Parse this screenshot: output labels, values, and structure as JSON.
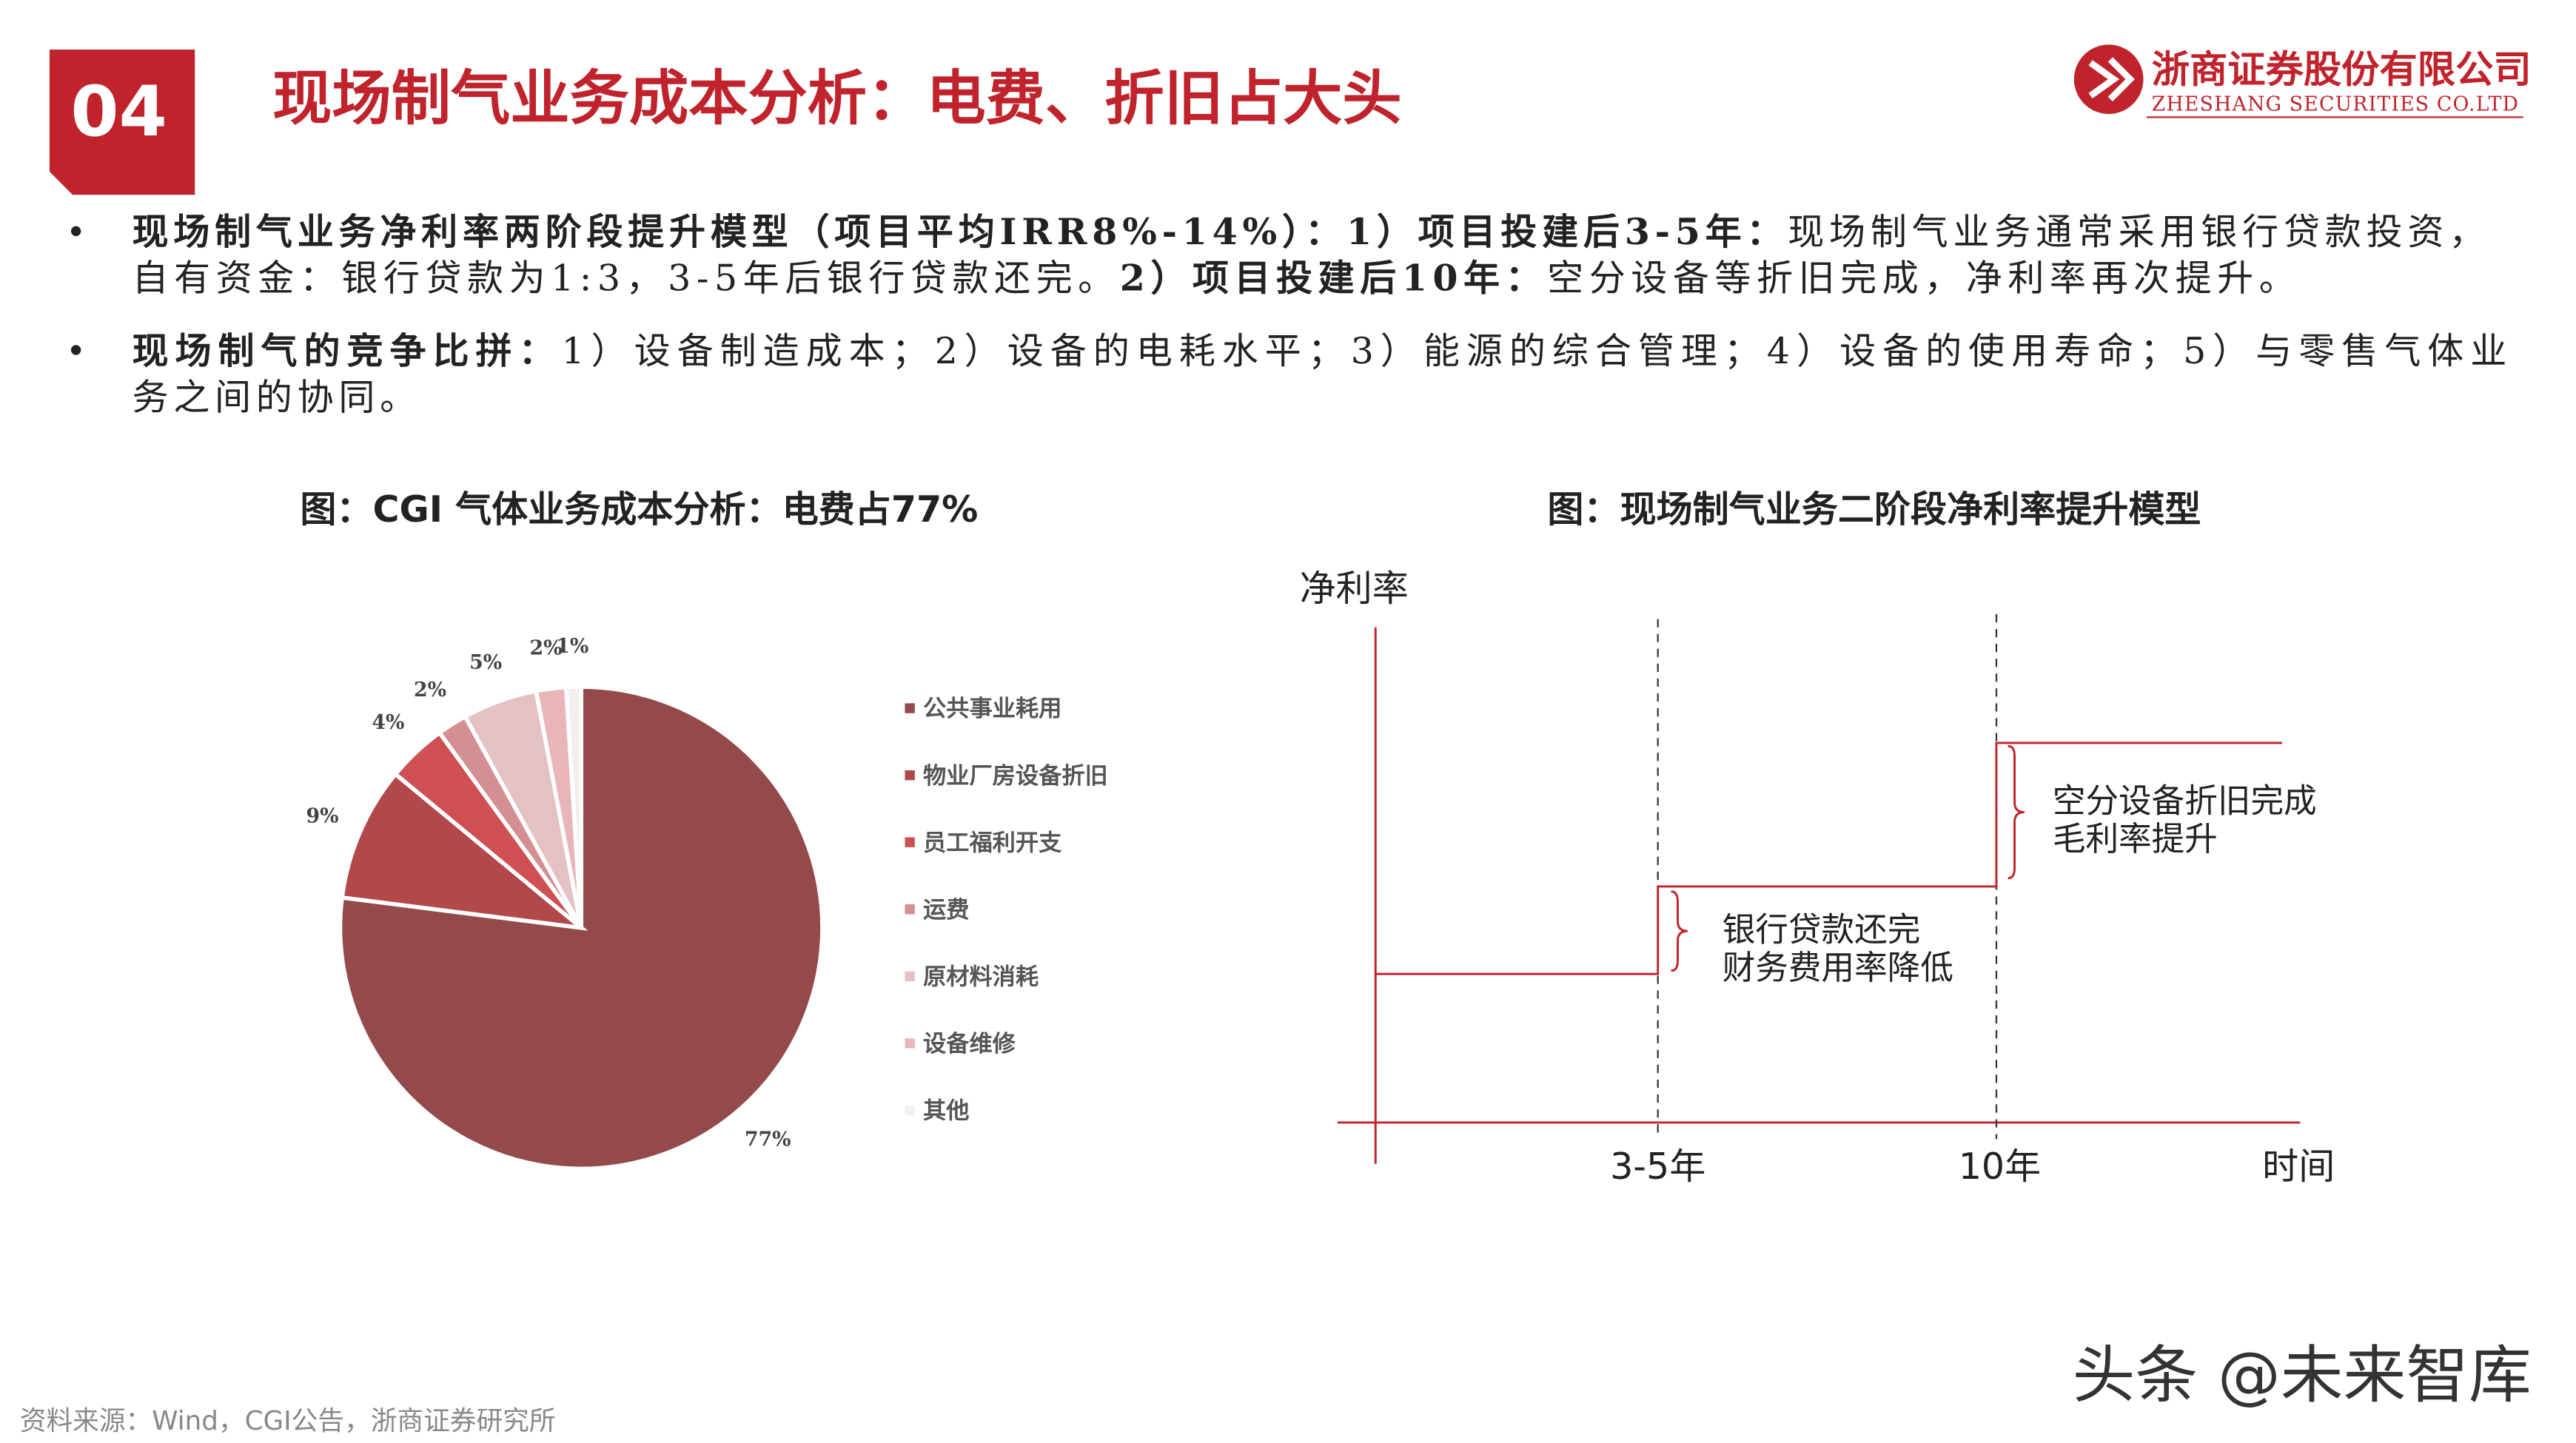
{
  "header": {
    "number": "04",
    "title": "现场制气业务成本分析：电费、折旧占大头",
    "logo_cn": "浙商证券股份有限公司",
    "logo_en": "ZHESHANG SECURITIES CO.LTD"
  },
  "bullets": [
    {
      "segments": [
        "现场制气业务净利率两阶段提升模型（项目平均IRR8%-14%）：1）项目投建后3-5年：",
        "现场制气业务通常采用银行贷款投资，",
        "自有资金：银行贷款为1:3，3-5年后银行贷款还完。",
        "2）项目投建后10年：",
        "空分设备等折旧完成，净利率再次提升。"
      ]
    },
    {
      "segments": [
        "现场制气的竞争比拼：",
        "1）设备制造成本；2）设备的电耗水平；3）能源的综合管理；4）设备的使用寿命；5）与零售气体业",
        "务之间的协同。"
      ]
    }
  ],
  "chart_data": {
    "type": "pie",
    "title": "图：CGI 气体业务成本分析：电费占77%",
    "categories": [
      "公共事业耗用",
      "物业厂房设备折旧",
      "员工福利开支",
      "运费",
      "原材料消耗",
      "设备维修",
      "其他"
    ],
    "values": [
      77,
      9,
      4,
      2,
      5,
      2,
      1
    ],
    "value_labels": [
      "77%",
      "9%",
      "4%",
      "2%",
      "5%",
      "2%",
      "1%"
    ],
    "colors": [
      "#944a4b",
      "#b3484b",
      "#cf5053",
      "#d48f92",
      "#e4c2c3",
      "#e8b6b9",
      "#f4eeee"
    ],
    "legend": "right"
  },
  "diagram": {
    "title": "图：现场制气业务二阶段净利率提升模型",
    "y_axis": "净利率",
    "x_axis": "时间",
    "x_labels": [
      "3-5年",
      "10年"
    ],
    "step1": [
      "银行贷款还完",
      "财务费用率降低"
    ],
    "step2": [
      "空分设备折旧完成",
      "毛利率提升"
    ]
  },
  "source": "资料来源：Wind，CGI公告，浙商证券研究所",
  "watermark": "头条 @未来智库"
}
